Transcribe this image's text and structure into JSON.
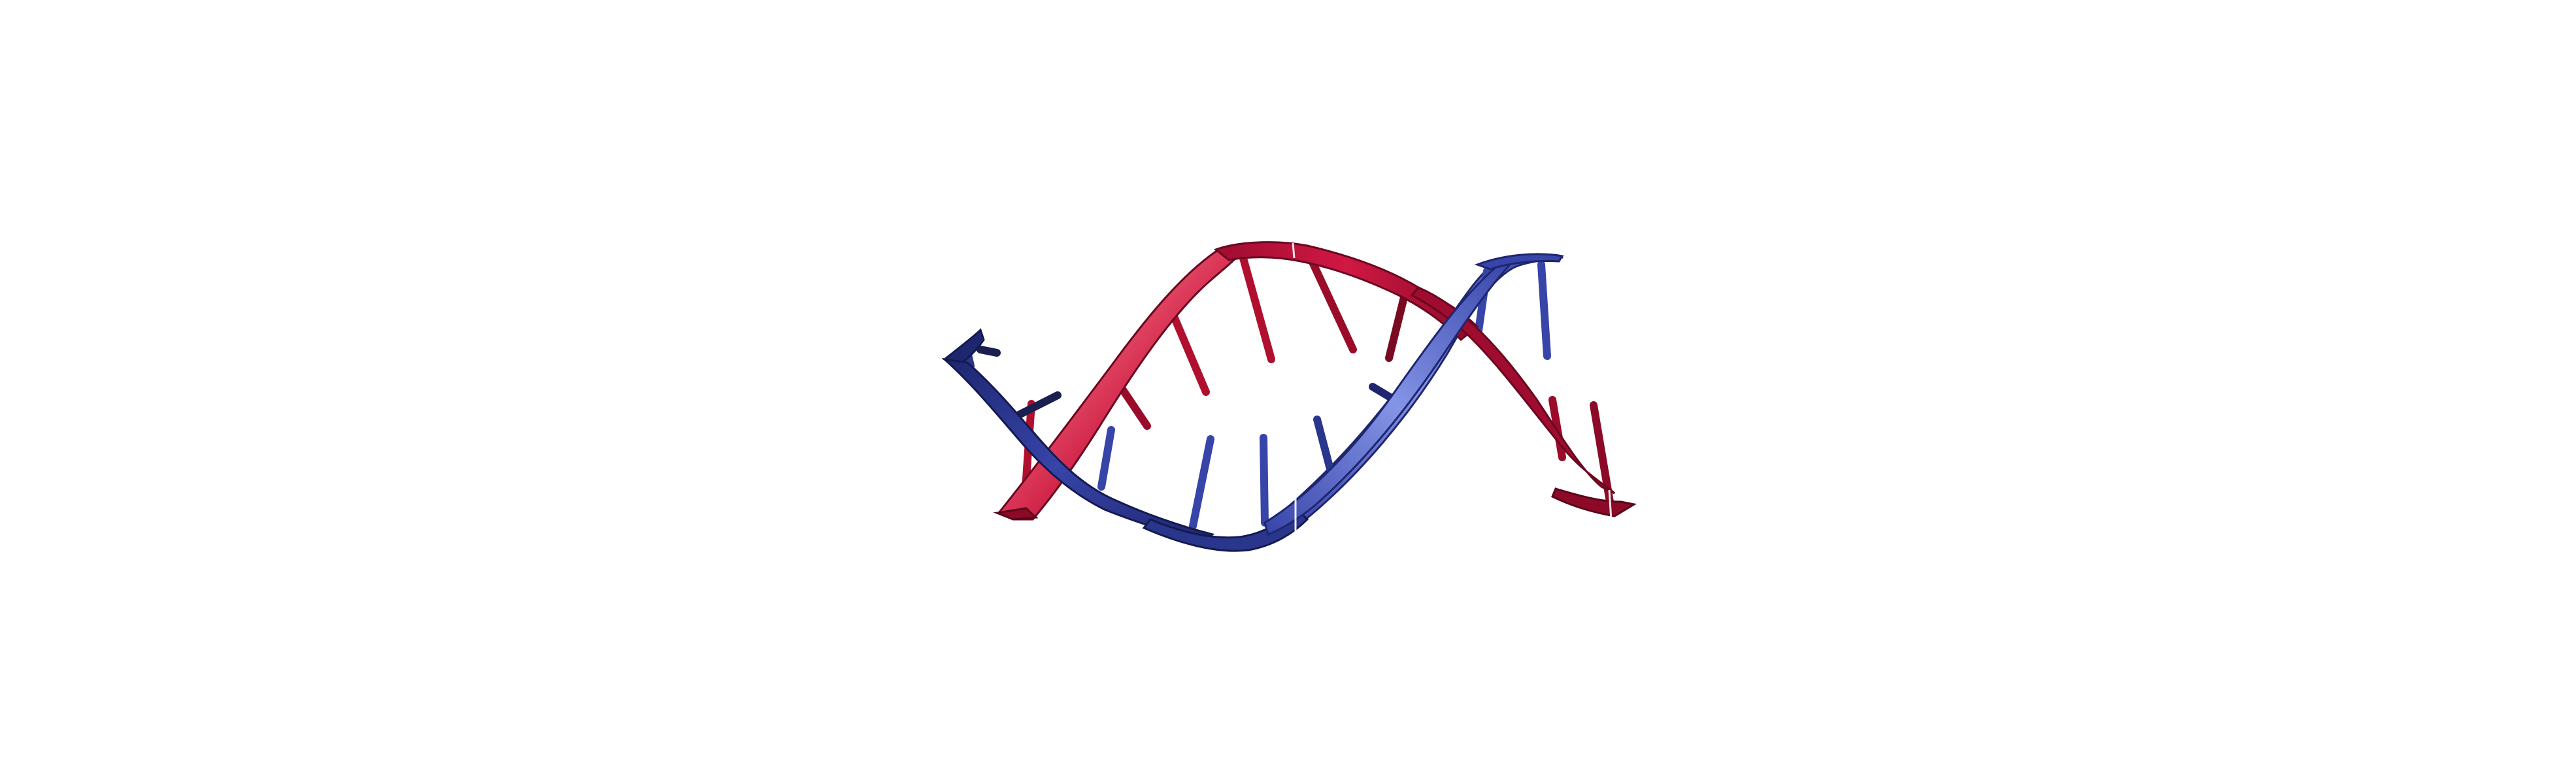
{
  "scene": {
    "background": "#ffffff",
    "subject": "dna-double-helix-cartoon"
  },
  "strands": [
    {
      "id": "strand-a",
      "colors": {
        "light": "#e8566e",
        "mid": "#c8103a",
        "dark": "#8c0a28"
      }
    },
    {
      "id": "strand-b",
      "colors": {
        "light": "#7f8fe0",
        "mid": "#3744a8",
        "dark": "#1e2670"
      }
    }
  ]
}
